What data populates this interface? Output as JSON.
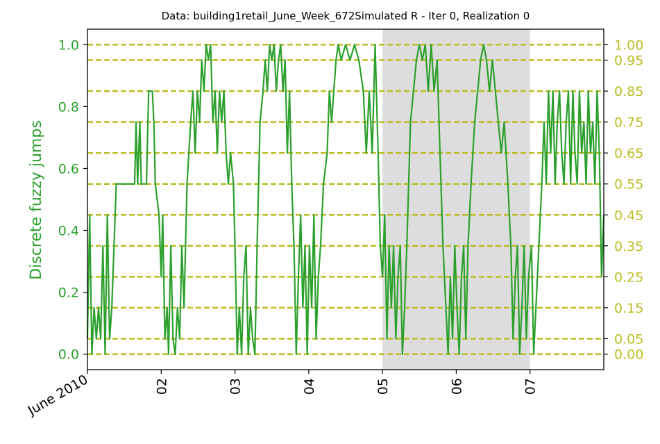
{
  "chart_data": {
    "type": "line",
    "title": "Data: building1retail_June_Week_672Simulated R - Iter 0, Realization 0",
    "ylabel": "Discrete fuzzy jumps",
    "xlabel": "",
    "x_start_label": "June 2010",
    "x_ticks": [
      {
        "x": 1,
        "label": "June 2010"
      },
      {
        "x": 2,
        "label": "02"
      },
      {
        "x": 3,
        "label": "03"
      },
      {
        "x": 4,
        "label": "04"
      },
      {
        "x": 5,
        "label": "05"
      },
      {
        "x": 6,
        "label": "06"
      },
      {
        "x": 7,
        "label": "07"
      }
    ],
    "xlim": [
      1,
      8
    ],
    "ylim": [
      -0.05,
      1.05
    ],
    "y_ticks_left": [
      {
        "y": 0.0,
        "label": "0.0"
      },
      {
        "y": 0.2,
        "label": "0.2"
      },
      {
        "y": 0.4,
        "label": "0.4"
      },
      {
        "y": 0.6,
        "label": "0.6"
      },
      {
        "y": 0.8,
        "label": "0.8"
      },
      {
        "y": 1.0,
        "label": "1.0"
      }
    ],
    "y_ticks_right": [
      {
        "y": 0.0,
        "label": "0.00"
      },
      {
        "y": 0.05,
        "label": "0.05"
      },
      {
        "y": 0.15,
        "label": "0.15"
      },
      {
        "y": 0.25,
        "label": "0.25"
      },
      {
        "y": 0.35,
        "label": "0.35"
      },
      {
        "y": 0.45,
        "label": "0.45"
      },
      {
        "y": 0.55,
        "label": "0.55"
      },
      {
        "y": 0.65,
        "label": "0.65"
      },
      {
        "y": 0.75,
        "label": "0.75"
      },
      {
        "y": 0.85,
        "label": "0.85"
      },
      {
        "y": 0.95,
        "label": "0.95"
      },
      {
        "y": 1.0,
        "label": "1.00"
      }
    ],
    "reference_levels": [
      0.0,
      0.05,
      0.15,
      0.25,
      0.35,
      0.45,
      0.55,
      0.65,
      0.75,
      0.85,
      0.95,
      1.0
    ],
    "shaded_span": {
      "x_start": 5,
      "x_end": 7
    },
    "grid": false,
    "colors": {
      "series": "#2ca02c",
      "reference": "#bcbd22",
      "shade": "#dddddd",
      "axis": "#000000"
    },
    "series": [
      {
        "points": [
          [
            1.0,
            0.05
          ],
          [
            1.03,
            0.45
          ],
          [
            1.06,
            0.0
          ],
          [
            1.09,
            0.15
          ],
          [
            1.12,
            0.05
          ],
          [
            1.15,
            0.15
          ],
          [
            1.18,
            0.05
          ],
          [
            1.21,
            0.35
          ],
          [
            1.24,
            0.0
          ],
          [
            1.27,
            0.45
          ],
          [
            1.3,
            0.05
          ],
          [
            1.33,
            0.15
          ],
          [
            1.36,
            0.35
          ],
          [
            1.39,
            0.55
          ],
          [
            1.5,
            0.55
          ],
          [
            1.6,
            0.55
          ],
          [
            1.64,
            0.55
          ],
          [
            1.66,
            0.75
          ],
          [
            1.68,
            0.55
          ],
          [
            1.71,
            0.75
          ],
          [
            1.73,
            0.55
          ],
          [
            1.8,
            0.55
          ],
          [
            1.83,
            0.85
          ],
          [
            1.88,
            0.85
          ],
          [
            1.9,
            0.75
          ],
          [
            1.92,
            0.55
          ],
          [
            1.97,
            0.45
          ],
          [
            2.0,
            0.25
          ],
          [
            2.02,
            0.45
          ],
          [
            2.05,
            0.05
          ],
          [
            2.08,
            0.15
          ],
          [
            2.1,
            0.0
          ],
          [
            2.13,
            0.35
          ],
          [
            2.16,
            0.05
          ],
          [
            2.19,
            0.0
          ],
          [
            2.22,
            0.15
          ],
          [
            2.25,
            0.05
          ],
          [
            2.28,
            0.35
          ],
          [
            2.31,
            0.15
          ],
          [
            2.35,
            0.55
          ],
          [
            2.4,
            0.75
          ],
          [
            2.43,
            0.85
          ],
          [
            2.46,
            0.65
          ],
          [
            2.49,
            0.85
          ],
          [
            2.52,
            0.75
          ],
          [
            2.55,
            0.95
          ],
          [
            2.58,
            0.85
          ],
          [
            2.61,
            1.0
          ],
          [
            2.64,
            0.95
          ],
          [
            2.67,
            1.0
          ],
          [
            2.7,
            0.75
          ],
          [
            2.73,
            0.85
          ],
          [
            2.76,
            0.65
          ],
          [
            2.79,
            0.85
          ],
          [
            2.82,
            0.75
          ],
          [
            2.85,
            0.85
          ],
          [
            2.88,
            0.65
          ],
          [
            2.91,
            0.55
          ],
          [
            2.94,
            0.65
          ],
          [
            2.98,
            0.55
          ],
          [
            3.0,
            0.35
          ],
          [
            3.03,
            0.0
          ],
          [
            3.06,
            0.15
          ],
          [
            3.09,
            0.0
          ],
          [
            3.12,
            0.25
          ],
          [
            3.15,
            0.35
          ],
          [
            3.18,
            0.0
          ],
          [
            3.21,
            0.15
          ],
          [
            3.24,
            0.05
          ],
          [
            3.27,
            0.0
          ],
          [
            3.3,
            0.35
          ],
          [
            3.34,
            0.75
          ],
          [
            3.38,
            0.85
          ],
          [
            3.41,
            0.95
          ],
          [
            3.44,
            0.85
          ],
          [
            3.47,
            1.0
          ],
          [
            3.5,
            0.95
          ],
          [
            3.53,
            1.0
          ],
          [
            3.56,
            0.85
          ],
          [
            3.59,
            0.95
          ],
          [
            3.62,
            1.0
          ],
          [
            3.65,
            0.85
          ],
          [
            3.68,
            0.95
          ],
          [
            3.71,
            0.65
          ],
          [
            3.74,
            0.85
          ],
          [
            3.77,
            0.55
          ],
          [
            3.8,
            0.35
          ],
          [
            3.83,
            0.0
          ],
          [
            3.86,
            0.25
          ],
          [
            3.89,
            0.45
          ],
          [
            3.92,
            0.15
          ],
          [
            3.95,
            0.35
          ],
          [
            3.98,
            0.0
          ],
          [
            4.01,
            0.35
          ],
          [
            4.04,
            0.15
          ],
          [
            4.07,
            0.45
          ],
          [
            4.1,
            0.05
          ],
          [
            4.13,
            0.25
          ],
          [
            4.16,
            0.35
          ],
          [
            4.2,
            0.55
          ],
          [
            4.25,
            0.65
          ],
          [
            4.28,
            0.85
          ],
          [
            4.31,
            0.75
          ],
          [
            4.34,
            0.85
          ],
          [
            4.37,
            0.95
          ],
          [
            4.4,
            1.0
          ],
          [
            4.44,
            0.95
          ],
          [
            4.5,
            1.0
          ],
          [
            4.56,
            0.95
          ],
          [
            4.62,
            1.0
          ],
          [
            4.68,
            0.95
          ],
          [
            4.74,
            0.85
          ],
          [
            4.78,
            0.65
          ],
          [
            4.82,
            0.85
          ],
          [
            4.86,
            0.65
          ],
          [
            4.9,
            1.0
          ],
          [
            4.94,
            0.65
          ],
          [
            4.97,
            0.35
          ],
          [
            5.0,
            0.25
          ],
          [
            5.03,
            0.45
          ],
          [
            5.06,
            0.05
          ],
          [
            5.09,
            0.35
          ],
          [
            5.12,
            0.15
          ],
          [
            5.15,
            0.35
          ],
          [
            5.18,
            0.05
          ],
          [
            5.21,
            0.25
          ],
          [
            5.24,
            0.35
          ],
          [
            5.27,
            0.0
          ],
          [
            5.3,
            0.15
          ],
          [
            5.33,
            0.35
          ],
          [
            5.38,
            0.75
          ],
          [
            5.42,
            0.85
          ],
          [
            5.46,
            0.95
          ],
          [
            5.5,
            1.0
          ],
          [
            5.54,
            0.95
          ],
          [
            5.58,
            1.0
          ],
          [
            5.62,
            0.85
          ],
          [
            5.66,
            1.0
          ],
          [
            5.7,
            0.85
          ],
          [
            5.74,
            0.95
          ],
          [
            5.78,
            0.65
          ],
          [
            5.82,
            0.35
          ],
          [
            5.86,
            0.15
          ],
          [
            5.89,
            0.0
          ],
          [
            5.92,
            0.25
          ],
          [
            5.95,
            0.05
          ],
          [
            5.98,
            0.35
          ],
          [
            6.01,
            0.15
          ],
          [
            6.04,
            0.0
          ],
          [
            6.07,
            0.25
          ],
          [
            6.1,
            0.35
          ],
          [
            6.13,
            0.05
          ],
          [
            6.16,
            0.35
          ],
          [
            6.2,
            0.55
          ],
          [
            6.25,
            0.75
          ],
          [
            6.29,
            0.85
          ],
          [
            6.33,
            0.95
          ],
          [
            6.37,
            1.0
          ],
          [
            6.41,
            0.95
          ],
          [
            6.45,
            0.85
          ],
          [
            6.49,
            0.95
          ],
          [
            6.53,
            0.85
          ],
          [
            6.57,
            0.75
          ],
          [
            6.61,
            0.65
          ],
          [
            6.65,
            0.75
          ],
          [
            6.7,
            0.55
          ],
          [
            6.74,
            0.35
          ],
          [
            6.77,
            0.05
          ],
          [
            6.8,
            0.25
          ],
          [
            6.83,
            0.35
          ],
          [
            6.86,
            0.0
          ],
          [
            6.89,
            0.15
          ],
          [
            6.92,
            0.35
          ],
          [
            6.95,
            0.05
          ],
          [
            6.98,
            0.25
          ],
          [
            7.02,
            0.35
          ],
          [
            7.05,
            0.0
          ],
          [
            7.08,
            0.15
          ],
          [
            7.12,
            0.35
          ],
          [
            7.16,
            0.55
          ],
          [
            7.19,
            0.75
          ],
          [
            7.22,
            0.55
          ],
          [
            7.25,
            0.85
          ],
          [
            7.28,
            0.65
          ],
          [
            7.31,
            0.85
          ],
          [
            7.34,
            0.55
          ],
          [
            7.37,
            0.75
          ],
          [
            7.4,
            0.85
          ],
          [
            7.43,
            0.65
          ],
          [
            7.46,
            0.55
          ],
          [
            7.49,
            0.75
          ],
          [
            7.52,
            0.85
          ],
          [
            7.55,
            0.55
          ],
          [
            7.58,
            0.85
          ],
          [
            7.61,
            0.65
          ],
          [
            7.64,
            0.55
          ],
          [
            7.67,
            0.85
          ],
          [
            7.7,
            0.65
          ],
          [
            7.73,
            0.75
          ],
          [
            7.76,
            0.55
          ],
          [
            7.79,
            0.85
          ],
          [
            7.82,
            0.65
          ],
          [
            7.85,
            0.75
          ],
          [
            7.88,
            0.55
          ],
          [
            7.91,
            0.85
          ],
          [
            7.94,
            0.65
          ],
          [
            7.97,
            0.25
          ],
          [
            8.0,
            0.45
          ]
        ]
      }
    ]
  }
}
